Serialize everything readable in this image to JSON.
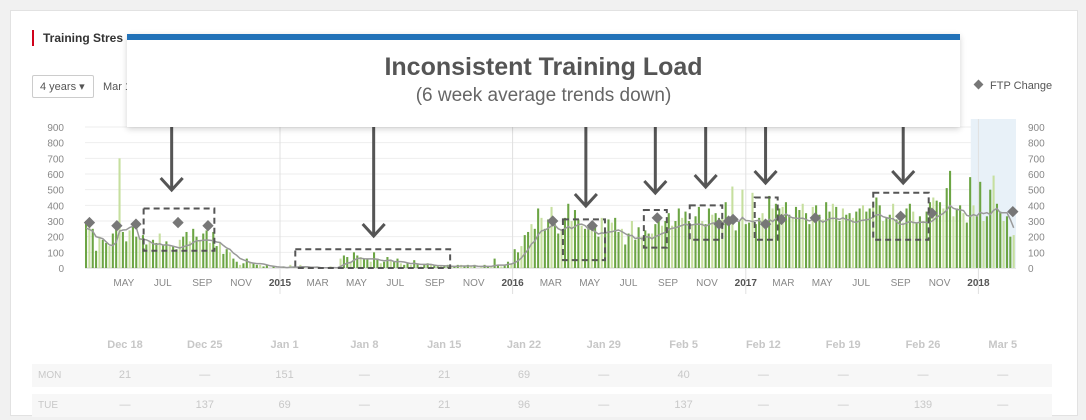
{
  "section_title": "Training Stres",
  "controls": {
    "range_label": "4 years ▾",
    "date_label": "Mar 1"
  },
  "legend": {
    "ftp_label": "FTP Change"
  },
  "overlay": {
    "headline": "Inconsistent Training Load",
    "subline": "(6 week average trends down)"
  },
  "colors": {
    "overlay_bar": "#2272b8",
    "bar_dark": "#6ca544",
    "bar_light": "#c6df9f",
    "avg_line": "#999999",
    "ftp_marker": "#777777",
    "title_accent": "#d0021b"
  },
  "chart_data": {
    "type": "bar",
    "title": "",
    "ylim": [
      0,
      900
    ],
    "y_ticks": [
      900,
      800,
      700,
      600,
      500,
      400,
      300,
      200,
      100,
      0
    ],
    "x_start": "2014-03-01",
    "x_end": "2018-03-01",
    "x_tick_labels": [
      "MAY",
      "JUL",
      "SEP",
      "NOV",
      "2015",
      "MAR",
      "MAY",
      "JUL",
      "SEP",
      "NOV",
      "2016",
      "MAR",
      "MAY",
      "JUL",
      "SEP",
      "NOV",
      "2017",
      "MAR",
      "MAY",
      "JUL",
      "SEP",
      "NOV",
      "2018"
    ],
    "series": [
      {
        "values": [
          300,
          280,
          250,
          110,
          200,
          180,
          160,
          140,
          220,
          260,
          700,
          230,
          170,
          240,
          280,
          200,
          190,
          210,
          150,
          170,
          180,
          160,
          220,
          150,
          170,
          140,
          140,
          120,
          180,
          200,
          230,
          170,
          250,
          200,
          180,
          220,
          240,
          160,
          230,
          140,
          160,
          90,
          120,
          100,
          60,
          40,
          20,
          30,
          60,
          40,
          30,
          20,
          20,
          10,
          20,
          0,
          10,
          0,
          0,
          10,
          0,
          20,
          10,
          0,
          20,
          10,
          0,
          0,
          0,
          10,
          0,
          0,
          0,
          10,
          0,
          0,
          60,
          80,
          70,
          40,
          100,
          80,
          70,
          60,
          60,
          40,
          100,
          60,
          30,
          40,
          70,
          50,
          40,
          60,
          30,
          20,
          30,
          20,
          50,
          30,
          10,
          20,
          30,
          20,
          20,
          10,
          10,
          10,
          20,
          10,
          10,
          20,
          20,
          10,
          20,
          10,
          20,
          0,
          10,
          20,
          10,
          10,
          60,
          20,
          10,
          20,
          40,
          30,
          120,
          100,
          140,
          210,
          230,
          280,
          250,
          380,
          320,
          250,
          310,
          390,
          280,
          220,
          250,
          320,
          410,
          300,
          370,
          310,
          270,
          250,
          260,
          280,
          270,
          200,
          320,
          240,
          310,
          290,
          320,
          230,
          250,
          150,
          220,
          300,
          180,
          260,
          200,
          240,
          220,
          220,
          280,
          320,
          270,
          300,
          350,
          270,
          300,
          380,
          320,
          360,
          300,
          280,
          330,
          390,
          300,
          280,
          380,
          340,
          350,
          320,
          320,
          420,
          300,
          520,
          240,
          300,
          500,
          280,
          290,
          480,
          280,
          320,
          350,
          300,
          460,
          380,
          410,
          380,
          390,
          420,
          340,
          320,
          390,
          370,
          410,
          350,
          280,
          390,
          400,
          340,
          310,
          420,
          360,
          410,
          390,
          300,
          380,
          340,
          350,
          320,
          360,
          380,
          400,
          360,
          380,
          420,
          450,
          400,
          300,
          320,
          340,
          410,
          310,
          300,
          290,
          380,
          410,
          360,
          290,
          330,
          300,
          360,
          420,
          450,
          430,
          420,
          380,
          510,
          620,
          330,
          380,
          400,
          350,
          290,
          580,
          400,
          330,
          550,
          300,
          330,
          500,
          590,
          410,
          360,
          300,
          330,
          200,
          210
        ]
      },
      {
        "name": "FTP Change",
        "markers": [
          [
            "2014-03-08",
            290
          ],
          [
            "2014-04-20",
            270
          ],
          [
            "2014-05-20",
            280
          ],
          [
            "2014-07-25",
            290
          ],
          [
            "2014-09-10",
            270
          ],
          [
            "2016-03-04",
            300
          ],
          [
            "2016-05-05",
            270
          ],
          [
            "2016-08-15",
            320
          ],
          [
            "2016-11-20",
            280
          ],
          [
            "2016-12-05",
            300
          ],
          [
            "2016-12-12",
            310
          ],
          [
            "2017-02-01",
            280
          ],
          [
            "2017-02-26",
            310
          ],
          [
            "2017-04-20",
            320
          ],
          [
            "2017-09-01",
            330
          ],
          [
            "2017-10-20",
            350
          ],
          [
            "2018-02-24",
            360
          ]
        ]
      }
    ],
    "grid": true,
    "legend_position": "top-right"
  },
  "calendar": {
    "weeks": [
      "Dec 18",
      "Dec 25",
      "Jan 1",
      "Jan 8",
      "Jan 15",
      "Jan 22",
      "Jan 29",
      "Feb 5",
      "Feb 12",
      "Feb 19",
      "Feb 26",
      "Mar 5"
    ],
    "rows": [
      {
        "day": "MON",
        "values": [
          "21",
          "—",
          "151",
          "—",
          "21",
          "69",
          "—",
          "40",
          "—",
          "—",
          "—",
          "—"
        ]
      },
      {
        "day": "TUE",
        "values": [
          "—",
          "137",
          "69",
          "—",
          "21",
          "96",
          "—",
          "137",
          "—",
          "—",
          "139",
          "—"
        ]
      }
    ]
  }
}
